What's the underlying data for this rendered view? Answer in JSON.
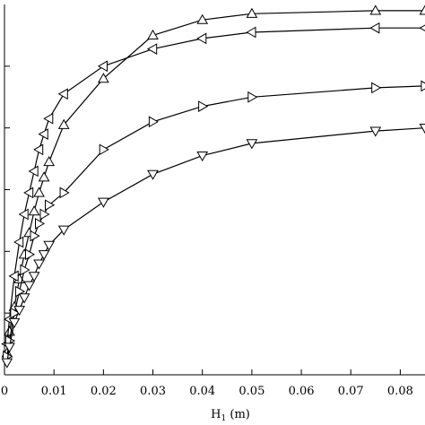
{
  "chart_data": {
    "type": "line",
    "title": "",
    "xlabel": "H",
    "xlabel_sub": "1",
    "xlabel_unit": " (m)",
    "ylabel": "",
    "xlim": [
      0,
      0.085
    ],
    "ylim": [
      0,
      6
    ],
    "grid": false,
    "x_ticks": [
      0,
      0.01,
      0.02,
      0.03,
      0.04,
      0.05,
      0.06,
      0.07,
      0.08
    ],
    "x_tick_labels": [
      "0",
      "0.01",
      "0.02",
      "0.03",
      "0.04",
      "0.05",
      "0.06",
      "0.07",
      "0.08"
    ],
    "y_ticks": [
      0,
      1,
      2,
      3,
      4,
      5
    ],
    "series": [
      {
        "marker": "triangle-up",
        "x": [
          0.0005,
          0.001,
          0.002,
          0.003,
          0.004,
          0.005,
          0.006,
          0.007,
          0.008,
          0.009,
          0.012,
          0.02,
          0.03,
          0.04,
          0.05,
          0.075,
          0.085
        ],
        "y": [
          0.35,
          0.7,
          1.1,
          1.55,
          1.95,
          2.3,
          2.65,
          2.95,
          3.2,
          3.45,
          4.05,
          4.8,
          5.5,
          5.75,
          5.85,
          5.9,
          5.9
        ]
      },
      {
        "marker": "triangle-left",
        "x": [
          0.0005,
          0.001,
          0.002,
          0.003,
          0.004,
          0.005,
          0.006,
          0.007,
          0.008,
          0.009,
          0.012,
          0.02,
          0.03,
          0.04,
          0.05,
          0.075,
          0.085
        ],
        "y": [
          0.5,
          0.9,
          1.6,
          2.15,
          2.6,
          2.95,
          3.3,
          3.65,
          3.9,
          4.15,
          4.55,
          5.0,
          5.28,
          5.45,
          5.55,
          5.62,
          5.62
        ]
      },
      {
        "marker": "triangle-right",
        "x": [
          0.0005,
          0.001,
          0.002,
          0.003,
          0.004,
          0.005,
          0.006,
          0.007,
          0.008,
          0.009,
          0.012,
          0.02,
          0.03,
          0.04,
          0.05,
          0.075,
          0.085
        ],
        "y": [
          0.3,
          0.55,
          1.0,
          1.35,
          1.7,
          1.95,
          2.25,
          2.45,
          2.6,
          2.75,
          2.95,
          3.65,
          4.1,
          4.35,
          4.5,
          4.65,
          4.68
        ]
      },
      {
        "marker": "triangle-down",
        "x": [
          0.0005,
          0.001,
          0.002,
          0.003,
          0.004,
          0.005,
          0.006,
          0.007,
          0.008,
          0.009,
          0.012,
          0.02,
          0.03,
          0.04,
          0.05,
          0.075,
          0.085
        ],
        "y": [
          0.2,
          0.45,
          0.85,
          1.05,
          1.25,
          1.45,
          1.6,
          1.8,
          1.95,
          2.1,
          2.35,
          2.8,
          3.25,
          3.55,
          3.75,
          3.95,
          4.0
        ]
      }
    ],
    "colors": {
      "line": "#000000",
      "marker_fill": "#ffffff"
    }
  }
}
